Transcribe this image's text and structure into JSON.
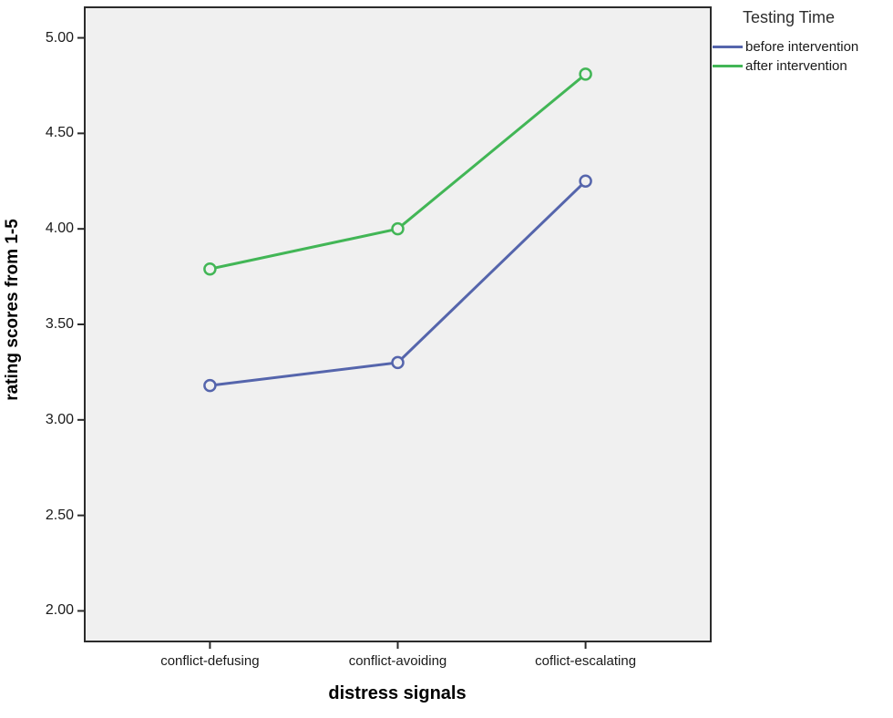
{
  "chart_data": {
    "type": "line",
    "title": "",
    "categories": [
      "conflict-defusing",
      "conflict-avoiding",
      "coflict-escalating"
    ],
    "xlabel": "distress signals",
    "ylabel": "rating scores from 1-5",
    "ylim": [
      1.84,
      5.16
    ],
    "yticks": [
      2.0,
      2.5,
      3.0,
      3.5,
      4.0,
      4.5,
      5.0
    ],
    "ytick_labels": [
      "2.00",
      "2.50",
      "3.00",
      "3.50",
      "4.00",
      "4.50",
      "5.00"
    ],
    "grid": false,
    "marker": "open-circle",
    "legend": {
      "title": "Testing Time",
      "position": "top-right-outside"
    },
    "series": [
      {
        "name": "before intervention",
        "color": "#5565ac",
        "values": [
          3.18,
          3.3,
          4.25
        ]
      },
      {
        "name": "after intervention",
        "color": "#42b656",
        "values": [
          3.79,
          4.0,
          4.81
        ]
      }
    ],
    "colors": {
      "plot_background": "#f0f0f0",
      "panel_border": "#2b2b2b",
      "tick_text": "#1a1a1a",
      "outer_background": "#ffffff"
    }
  }
}
